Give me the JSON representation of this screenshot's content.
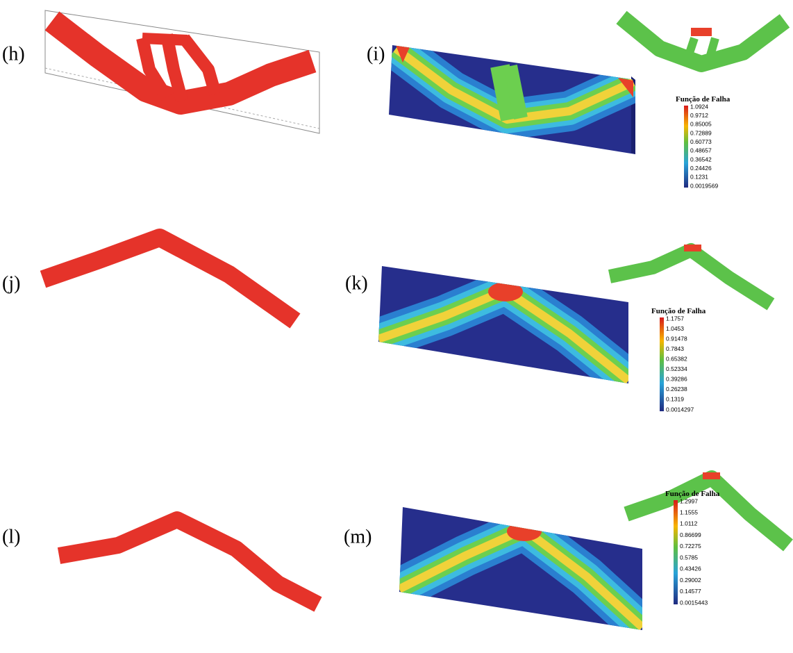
{
  "panels": [
    {
      "label": "(h)"
    },
    {
      "label": "(i)",
      "legend": {
        "title": "Função de Falha",
        "ticks": [
          "1.0924",
          "0.9712",
          "0.85005",
          "0.72889",
          "0.60773",
          "0.48657",
          "0.36542",
          "0.24426",
          "0.1231",
          "0.0019569"
        ]
      }
    },
    {
      "label": "(j)"
    },
    {
      "label": "(k)",
      "legend": {
        "title": "Função de Falha",
        "ticks": [
          "1.1757",
          "1.0453",
          "0.91478",
          "0.7843",
          "0.65382",
          "0.52334",
          "0.39286",
          "0.26238",
          "0.1319",
          "0.0014297"
        ]
      }
    },
    {
      "label": "(l)"
    },
    {
      "label": "(m)",
      "legend": {
        "title": "Função de Falha",
        "ticks": [
          "1.2997",
          "1.1555",
          "1.0112",
          "0.86699",
          "0.72275",
          "0.5785",
          "0.43426",
          "0.29002",
          "0.14577",
          "0.0015443"
        ]
      }
    }
  ]
}
